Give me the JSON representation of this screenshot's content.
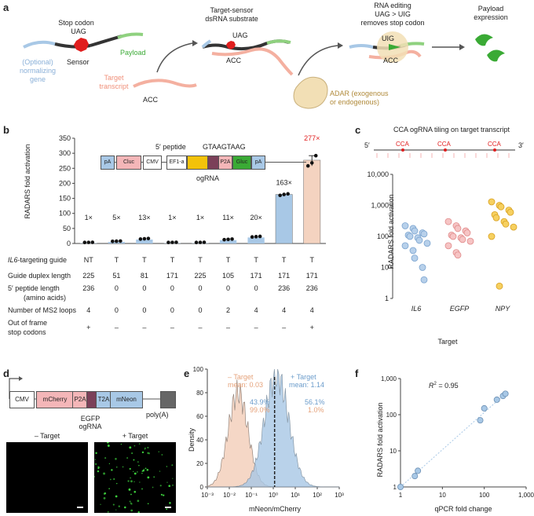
{
  "panel_a": {
    "letter": "a",
    "stop_codon": "Stop codon",
    "uag": "UAG",
    "payload": "Payload",
    "sensor": "Sensor",
    "optional_gene": "(Optional)\nnormalizing\ngene",
    "target_transcript": "Target\ntranscript",
    "acc": "ACC",
    "substrate_title": "Target-sensor\ndsRNA substrate",
    "substrate_uag": "UAG",
    "substrate_acc": "ACC",
    "editing_title": "RNA editing\nUAG > UIG\nremoves stop codon",
    "uig": "UIG",
    "editing_acc": "ACC",
    "payload_expression": "Payload\nexpression",
    "adar": "ADAR (exogenous\nor endogenous)"
  },
  "panel_b": {
    "letter": "b",
    "ylabel": "RADARS fold activation",
    "construct": {
      "pA1": "pA",
      "cluc": "Cluc",
      "cmv": "CMV",
      "ef1a": "EF1-a",
      "p2a": "P2A",
      "gluc": "Gluc",
      "pA2": "pA",
      "peptide": "5′ peptide",
      "ogrna": "ogRNA",
      "seq": "GTAAGTAAG"
    },
    "fold_labels": [
      "1×",
      "5×",
      "13×",
      "1×",
      "1×",
      "11×",
      "20×",
      "163×",
      "277×"
    ],
    "row_labels": {
      "guide_prefix": "IL6",
      "guide_suffix": "-targeting guide",
      "duplex": "Guide duplex length",
      "peptide": "5′ peptide length",
      "peptide_sub": "(amino acids)",
      "ms2": "Number of MS2 loops",
      "stop": "Out of frame",
      "stop_sub": "stop codons"
    },
    "guide": [
      "NT",
      "T",
      "T",
      "T",
      "T",
      "T",
      "T",
      "T",
      "T"
    ],
    "duplex": [
      "225",
      "51",
      "81",
      "171",
      "225",
      "105",
      "171",
      "171",
      "171"
    ],
    "peptide": [
      "236",
      "0",
      "0",
      "0",
      "0",
      "0",
      "0",
      "236",
      "236"
    ],
    "ms2": [
      "4",
      "0",
      "0",
      "0",
      "0",
      "2",
      "4",
      "4",
      "4"
    ],
    "stop": [
      "+",
      "–",
      "–",
      "–",
      "–",
      "–",
      "–",
      "–",
      "+"
    ]
  },
  "panel_c": {
    "letter": "c",
    "title": "CCA ogRNA tiling on target transcript",
    "five": "5′",
    "three": "3′",
    "cca": [
      "CCA",
      "CCA",
      "CCA"
    ],
    "ylabel": "RADARS fold activation",
    "xlabel": "Target",
    "categories": [
      "IL6",
      "EGFP",
      "NPY"
    ],
    "yticks": [
      "10,000",
      "1,000",
      "100",
      "10",
      "1"
    ]
  },
  "panel_d": {
    "letter": "d",
    "cmv": "CMV",
    "mcherry": "mCherry",
    "p2a": "P2A",
    "t2a": "T2A",
    "mneon": "mNeon",
    "polya": "poly(A)",
    "ogrna": "EGFP\nogRNA",
    "minus": "– Target",
    "plus": "+ Target"
  },
  "panel_e": {
    "letter": "e",
    "ylabel": "Density",
    "xlabel": "mNeon/mCherry",
    "minus_label": "– Target",
    "minus_mean": "mean: 0.03",
    "plus_label": "+ Target",
    "plus_mean": "mean: 1.14",
    "pct_blue_left": "43.9%",
    "pct_orange_left": "99.0%",
    "pct_blue_right": "56.1%",
    "pct_orange_right": "1.0%",
    "yticks": [
      "100",
      "80",
      "60",
      "40",
      "20",
      "0"
    ],
    "xticks": [
      "10⁻³",
      "10⁻²",
      "10⁻¹",
      "10⁰",
      "10¹",
      "10²",
      "10³"
    ]
  },
  "panel_f": {
    "letter": "f",
    "r2": "R² = 0.95",
    "ylabel": "RADARS fold activation",
    "xlabel": "qPCR fold change",
    "yticks": [
      "1,000",
      "100",
      "10",
      "1"
    ],
    "xticks": [
      "1",
      "10",
      "100",
      "1,000"
    ]
  },
  "colors": {
    "blue": "#a8c8e6",
    "orange": "#f4d3c0",
    "pink": "#f4b6b8",
    "gold": "#f3c25a",
    "green": "#3aaa35",
    "red": "#e01e1e",
    "purple": "#7b4059"
  },
  "chart_data": [
    {
      "type": "bar",
      "categories": [
        "1",
        "2",
        "3",
        "4",
        "5",
        "6",
        "7",
        "8",
        "9"
      ],
      "values": [
        1,
        5,
        13,
        1,
        1,
        11,
        20,
        163,
        277
      ],
      "ylabel": "RADARS fold activation",
      "ylim": [
        0,
        350
      ]
    },
    {
      "type": "scatter",
      "categories": [
        "IL6",
        "EGFP",
        "NPY"
      ],
      "series": [
        {
          "name": "IL6",
          "values": [
            220,
            180,
            150,
            130,
            120,
            110,
            100,
            90,
            75,
            60,
            50,
            35,
            20,
            10,
            4
          ]
        },
        {
          "name": "EGFP",
          "values": [
            300,
            220,
            180,
            150,
            130,
            110,
            100,
            90,
            80,
            70,
            50,
            30,
            25
          ]
        },
        {
          "name": "NPY",
          "values": [
            1300,
            1000,
            900,
            700,
            600,
            500,
            400,
            300,
            250,
            200,
            100,
            2.5
          ]
        }
      ],
      "ylabel": "RADARS fold activation",
      "xlabel": "Target",
      "ylim": [
        1,
        10000
      ],
      "yscale": "log"
    },
    {
      "type": "area",
      "series": [
        {
          "name": "– Target",
          "mean": 0.03
        },
        {
          "name": "+ Target",
          "mean": 1.14
        }
      ],
      "xlabel": "mNeon/mCherry",
      "ylabel": "Density",
      "xlim": [
        0.001,
        1000
      ],
      "ylim": [
        0,
        100
      ],
      "xscale": "log"
    },
    {
      "type": "scatter",
      "x": [
        1,
        2.2,
        2.6,
        80,
        100,
        200,
        280,
        320
      ],
      "y": [
        1,
        2,
        2.8,
        70,
        150,
        260,
        330,
        380
      ],
      "xlabel": "qPCR fold change",
      "ylabel": "RADARS fold activation",
      "xscale": "log",
      "yscale": "log",
      "xlim": [
        1,
        1000
      ],
      "ylim": [
        1,
        1000
      ]
    }
  ]
}
